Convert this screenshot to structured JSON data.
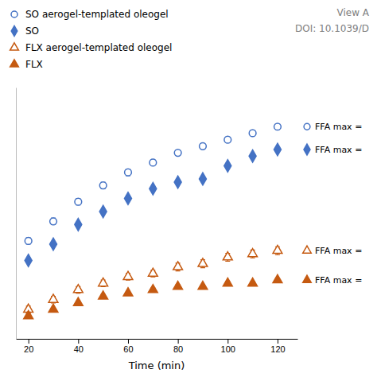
{
  "chart_data": {
    "type": "scatter",
    "xlabel": "Time (min)",
    "x": [
      20,
      30,
      40,
      50,
      60,
      70,
      80,
      90,
      100,
      110,
      120
    ],
    "xlim": [
      15,
      128
    ],
    "xticks": [
      20,
      40,
      60,
      80,
      100,
      120
    ],
    "ylim": [
      -2,
      75
    ],
    "tick_labels": "x",
    "legend": "top",
    "annotations": [
      "View A",
      "DOI: 10.1039/D"
    ],
    "series": [
      {
        "name": "SO aerogel-templated oleogel",
        "color": "#4472C4",
        "marker": "circle-open",
        "values": [
          28,
          34,
          40,
          45,
          49,
          52,
          55,
          57,
          59,
          61,
          63
        ],
        "errors": [
          1.0,
          1.0,
          1.0,
          1.0,
          1.0,
          0.8,
          0.8,
          0.8,
          0.8,
          0.8,
          0.8
        ],
        "annotation": "FFA max ="
      },
      {
        "name": "SO",
        "color": "#4472C4",
        "marker": "diamond",
        "values": [
          22,
          27,
          33,
          37,
          41,
          44,
          46,
          47,
          51,
          54,
          56
        ],
        "annotation": "FFA max ="
      },
      {
        "name": "FLX aerogel-templated oleogel",
        "color": "#C55A11",
        "marker": "triangle-open",
        "values": [
          7,
          10,
          13,
          15,
          17,
          18,
          20,
          21,
          23,
          24,
          25
        ],
        "errors": [
          1.0,
          1.0,
          1.0,
          1.0,
          1.0,
          1.0,
          1.2,
          1.2,
          1.2,
          1.2,
          1.2
        ],
        "annotation": "FFA max ="
      },
      {
        "name": "FLX",
        "color": "#C55A11",
        "marker": "triangle",
        "values": [
          5,
          7,
          9,
          11,
          12,
          13,
          14,
          14,
          15,
          15,
          16
        ],
        "errors": [
          0.6,
          0.6,
          0.6,
          0.6,
          0.6,
          0.6,
          0.6,
          0.6,
          0.6,
          0.6,
          0.6
        ],
        "annotation": "FFA max ="
      }
    ]
  }
}
